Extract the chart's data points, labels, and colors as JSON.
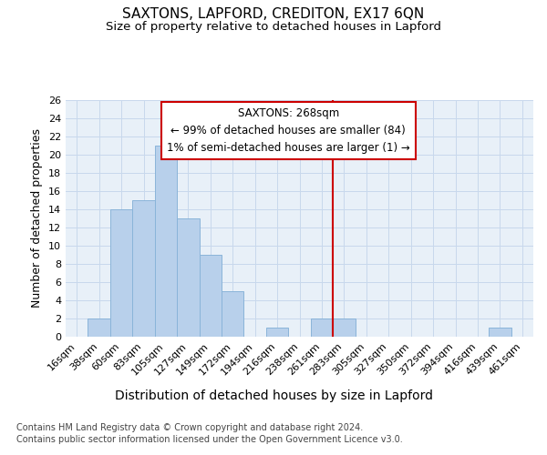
{
  "title": "SAXTONS, LAPFORD, CREDITON, EX17 6QN",
  "subtitle": "Size of property relative to detached houses in Lapford",
  "xlabel": "Distribution of detached houses by size in Lapford",
  "ylabel": "Number of detached properties",
  "footnote1": "Contains HM Land Registry data © Crown copyright and database right 2024.",
  "footnote2": "Contains public sector information licensed under the Open Government Licence v3.0.",
  "bar_labels": [
    "16sqm",
    "38sqm",
    "60sqm",
    "83sqm",
    "105sqm",
    "127sqm",
    "149sqm",
    "172sqm",
    "194sqm",
    "216sqm",
    "238sqm",
    "261sqm",
    "283sqm",
    "305sqm",
    "327sqm",
    "350sqm",
    "372sqm",
    "394sqm",
    "416sqm",
    "439sqm",
    "461sqm"
  ],
  "bar_values": [
    0,
    2,
    14,
    15,
    21,
    13,
    9,
    5,
    0,
    1,
    0,
    2,
    2,
    0,
    0,
    0,
    0,
    0,
    0,
    1,
    0
  ],
  "bar_color": "#b8d0eb",
  "bar_edgecolor": "#8ab4d9",
  "ylim": [
    0,
    26
  ],
  "yticks": [
    0,
    2,
    4,
    6,
    8,
    10,
    12,
    14,
    16,
    18,
    20,
    22,
    24,
    26
  ],
  "grid_color": "#c8d8ec",
  "vline_color": "#cc0000",
  "annotation_text": "SAXTONS: 268sqm\n← 99% of detached houses are smaller (84)\n1% of semi-detached houses are larger (1) →",
  "annotation_box_color": "#cc0000",
  "background_color": "#ffffff",
  "plot_bg_color": "#e8f0f8",
  "title_fontsize": 11,
  "subtitle_fontsize": 9.5,
  "xlabel_fontsize": 10,
  "ylabel_fontsize": 9,
  "tick_fontsize": 8,
  "annotation_fontsize": 8.5,
  "footnote_fontsize": 7
}
